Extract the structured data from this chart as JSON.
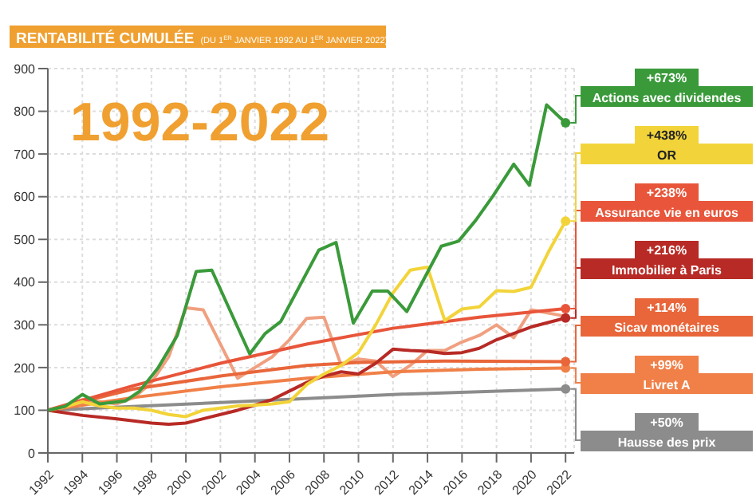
{
  "chart_data": {
    "type": "line",
    "title": "RENTABILITÉ CUMULÉE",
    "subtitle": "(DU 1$^{ER}$ JANVIER 1992 AU 1$^{ER}$ JANVIER 2022)",
    "annotations": [
      "1992-2022",
      "+673%",
      "+438%",
      "+238%",
      "+216%",
      "+114%",
      "+99%",
      "+50%"
    ],
    "legend": "right",
    "xlim": [
      1992,
      2022.5
    ],
    "xticks": [
      1992,
      1994,
      1996,
      1998,
      2000,
      2002,
      2004,
      2006,
      2008,
      2010,
      2012,
      2014,
      2016,
      2018,
      2020,
      2022
    ],
    "ylim": [
      0,
      900
    ],
    "yticks": [
      0,
      100,
      200,
      300,
      400,
      500,
      600,
      700,
      800,
      900
    ],
    "grid": true,
    "line_style": "solid",
    "series": [
      {
        "name": "Actions avec dividendes",
        "color": "#3a9a3a",
        "x": [
          1992,
          1993,
          1994,
          1995,
          1996.5,
          1997.3,
          1998.4,
          1999.5,
          2000.6,
          2001.5,
          2003.7,
          2004.6,
          2005.5,
          2007.7,
          2008.7,
          2009.7,
          2010.8,
          2011.7,
          2012.8,
          2013.7,
          2014.8,
          2015.8,
          2016.8,
          2017.8,
          2019,
          2019.9,
          2020.9,
          2022
        ],
        "values": [
          100,
          109,
          137,
          115,
          122,
          144,
          200,
          275,
          425,
          428,
          232,
          280,
          308,
          475,
          493,
          304,
          379,
          379,
          331,
          400,
          484,
          496,
          545,
          602,
          676,
          627,
          815,
          773
        ]
      },
      {
        "name": "OR",
        "color": "#f2d43a",
        "x": [
          1992,
          1993,
          1994,
          1995,
          1996,
          1997,
          1998,
          1999,
          2000,
          2001,
          2002,
          2003,
          2004,
          2005,
          2006,
          2007,
          2008,
          2009,
          2010,
          2011,
          2012,
          2013,
          2014,
          2015,
          2016,
          2017,
          2018,
          2019,
          2020,
          2021,
          2022
        ],
        "values": [
          100,
          108,
          120,
          110,
          105,
          105,
          100,
          90,
          85,
          100,
          105,
          110,
          112,
          115,
          120,
          160,
          185,
          205,
          235,
          300,
          375,
          428,
          435,
          310,
          337,
          342,
          380,
          378,
          388,
          470,
          543
        ]
      },
      {
        "name": "Assurance vie en euros",
        "color": "#e8553a",
        "x": [
          1992,
          1997,
          2002,
          2007,
          2012,
          2017,
          2022
        ],
        "values": [
          100,
          158,
          210,
          255,
          292,
          318,
          338
        ]
      },
      {
        "name": "Immobilier à Paris",
        "color": "#b82a25",
        "x": [
          1992,
          1994,
          1996,
          1998,
          1999,
          2000,
          2001,
          2002,
          2003,
          2004,
          2005,
          2006,
          2007,
          2008,
          2009,
          2010,
          2011,
          2012,
          2013,
          2014,
          2015,
          2016,
          2017,
          2018,
          2019,
          2020,
          2022
        ],
        "values": [
          100,
          88,
          80,
          70,
          67,
          70,
          80,
          90,
          100,
          112,
          125,
          145,
          165,
          180,
          190,
          185,
          210,
          243,
          240,
          238,
          233,
          235,
          245,
          265,
          280,
          295,
          316
        ]
      },
      {
        "name": "Sicav monétaires",
        "color": "#e8663a",
        "x": [
          1992,
          1997,
          2002,
          2007,
          2010,
          2015,
          2022
        ],
        "values": [
          100,
          150,
          180,
          205,
          212,
          215,
          214
        ]
      },
      {
        "name": "Livret A",
        "color": "#f08048",
        "x": [
          1992,
          1997,
          2002,
          2007,
          2012,
          2017,
          2022
        ],
        "values": [
          100,
          130,
          155,
          175,
          190,
          196,
          199
        ]
      },
      {
        "name": "Hausse des prix",
        "color": "#8c8c8c",
        "x": [
          1992,
          2002,
          2012,
          2022
        ],
        "values": [
          100,
          118,
          137,
          150
        ]
      },
      {
        "color": "#f0a080",
        "x": [
          1992,
          1994,
          1996,
          1997,
          1998,
          1999,
          2000,
          2001,
          2003,
          2004,
          2005,
          2006,
          2007,
          2008,
          2009,
          2010,
          2011,
          2012,
          2013,
          2014,
          2015,
          2016,
          2017,
          2018,
          2019,
          2020,
          2022
        ],
        "values": [
          100,
          125,
          115,
          130,
          165,
          225,
          340,
          335,
          175,
          200,
          225,
          265,
          315,
          318,
          205,
          220,
          215,
          179,
          205,
          240,
          240,
          260,
          275,
          300,
          270,
          335,
          320
        ]
      }
    ]
  }
}
